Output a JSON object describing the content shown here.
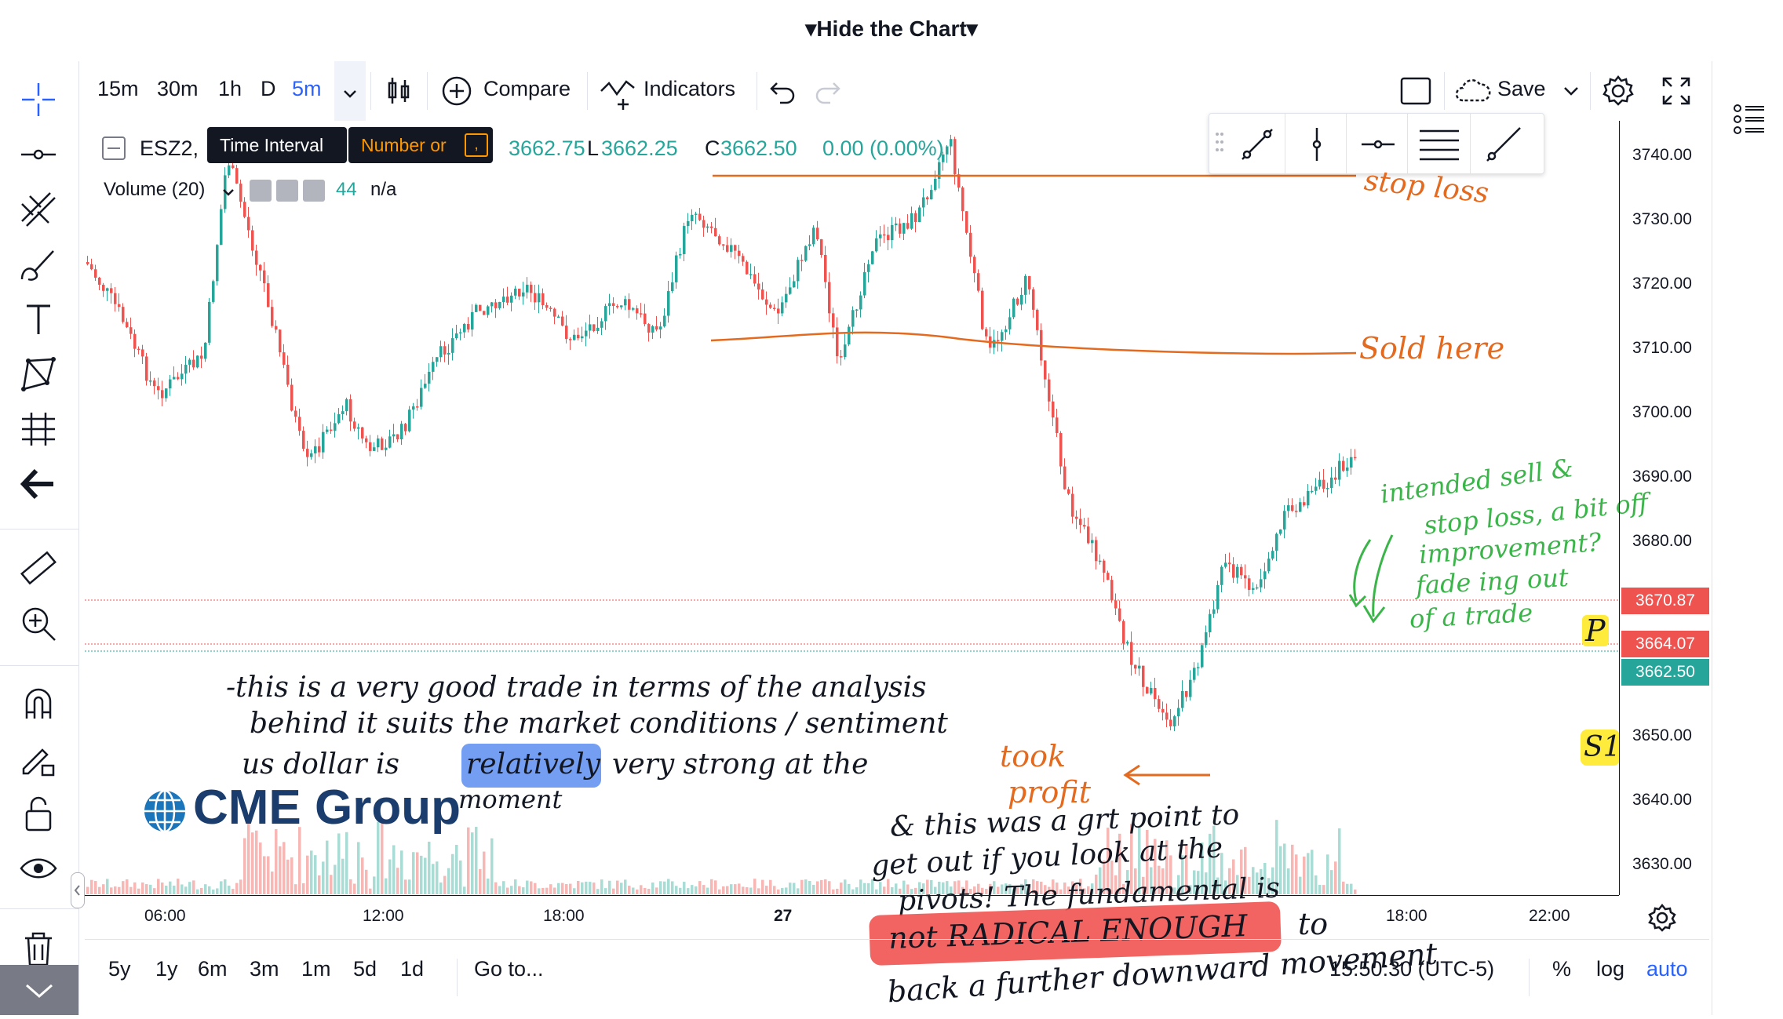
{
  "top": {
    "hide_chart": "▾Hide the Chart▾"
  },
  "toolbar": {
    "intervals": [
      "15m",
      "30m",
      "1h",
      "D",
      "5m"
    ],
    "compare": "Compare",
    "indicators": "Indicators",
    "save": "Save"
  },
  "tooltip": {
    "time_interval": "Time Interval",
    "number_or": "Number or",
    "number_key": ","
  },
  "legend": {
    "symbol": "ESZ2,",
    "ohlc_tail": "3662.75",
    "low_label": "L",
    "low": "3662.25",
    "close_label": "C",
    "close": "3662.50",
    "change": "0.00 (0.00%)",
    "volume_label": "Volume (20)",
    "volume_value": "44",
    "volume_na": "n/a"
  },
  "watermark": "CME Group",
  "price_axis": {
    "labels": [
      "3740.00",
      "3730.00",
      "3720.00",
      "3710.00",
      "3700.00",
      "3690.00",
      "3680.00",
      "3650.00",
      "3640.00",
      "3630.00"
    ],
    "tags": {
      "upper": "3670.87",
      "mid": "3664.07",
      "current": "3662.50"
    }
  },
  "time_axis": {
    "labels": [
      "06:00",
      "12:00",
      "18:00",
      "27",
      "18:00",
      "22:00"
    ]
  },
  "bottom": {
    "ranges": [
      "5y",
      "1y",
      "6m",
      "3m",
      "1m",
      "5d",
      "1d"
    ],
    "goto": "Go to...",
    "clock": "15:50:30 (UTC-5)",
    "percent": "%",
    "log": "log",
    "auto": "auto"
  },
  "annotations": {
    "stop_loss": "stop loss",
    "sold_here": "Sold here",
    "green_note": [
      "intended sell &",
      "stop loss, a bit off",
      "improvement?",
      "fade ing out",
      "of a trade"
    ],
    "took_profit": [
      "took",
      "profit"
    ],
    "note1": [
      "-this is a very good trade in terms of the analysis",
      "behind it suits the market conditions / sentiment",
      "us dollar is",
      "relatively",
      "very strong at the",
      "moment"
    ],
    "note2": [
      "& this was a grt point to",
      "get out if you look at the",
      "pivots! The fundamental is",
      "not RADICAL ENOUGH",
      "to",
      "back a further downward movement"
    ],
    "p_mark": "P",
    "s1_mark": "S1"
  },
  "colors": {
    "up": "#26a69a",
    "down": "#ef5350",
    "accent": "#2962ff",
    "orange": "#e36a1e",
    "pen_green": "#3bb54a"
  }
}
